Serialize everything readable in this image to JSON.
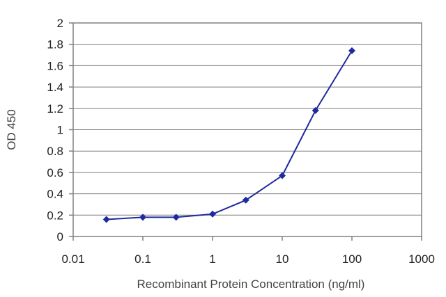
{
  "chart_data": {
    "type": "line",
    "xlabel": "Recombinant Protein Concentration (ng/ml)",
    "ylabel": "OD 450",
    "x_scale": "log",
    "xlim": [
      0.01,
      1000
    ],
    "ylim": [
      0,
      2
    ],
    "x_ticks": [
      "0.01",
      "0.1",
      "1",
      "10",
      "100",
      "1000"
    ],
    "y_ticks": [
      "0",
      "0.2",
      "0.4",
      "0.6",
      "0.8",
      "1",
      "1.2",
      "1.4",
      "1.6",
      "1.8",
      "2"
    ],
    "grid": "horizontal",
    "series": [
      {
        "color": "#1f2a9e",
        "marker": "diamond",
        "x": [
          0.03,
          0.1,
          0.3,
          1,
          3,
          10,
          30,
          100
        ],
        "values": [
          0.16,
          0.18,
          0.18,
          0.21,
          0.34,
          0.57,
          1.18,
          1.74
        ]
      }
    ]
  }
}
